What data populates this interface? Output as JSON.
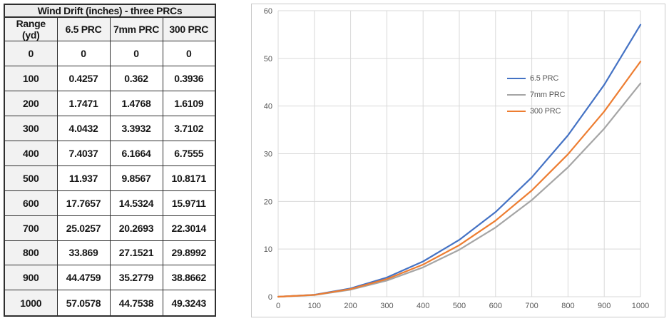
{
  "table": {
    "title": "Wind Drift (inches) - three PRCs",
    "columns": [
      "Range (yd)",
      "6.5 PRC",
      "7mm PRC",
      "300 PRC"
    ],
    "rows": [
      [
        "0",
        "0",
        "0",
        "0"
      ],
      [
        "100",
        "0.4257",
        "0.362",
        "0.3936"
      ],
      [
        "200",
        "1.7471",
        "1.4768",
        "1.6109"
      ],
      [
        "300",
        "4.0432",
        "3.3932",
        "3.7102"
      ],
      [
        "400",
        "7.4037",
        "6.1664",
        "6.7555"
      ],
      [
        "500",
        "11.937",
        "9.8567",
        "10.8171"
      ],
      [
        "600",
        "17.7657",
        "14.5324",
        "15.9711"
      ],
      [
        "700",
        "25.0257",
        "20.2693",
        "22.3014"
      ],
      [
        "800",
        "33.869",
        "27.1521",
        "29.8992"
      ],
      [
        "900",
        "44.4759",
        "35.2779",
        "38.8662"
      ],
      [
        "1000",
        "57.0578",
        "44.7538",
        "49.3243"
      ]
    ]
  },
  "chart_data": {
    "type": "line",
    "title": "",
    "xlabel": "",
    "ylabel": "",
    "x": [
      0,
      100,
      200,
      300,
      400,
      500,
      600,
      700,
      800,
      900,
      1000
    ],
    "series": [
      {
        "name": "6.5 PRC",
        "color": "#4472C4",
        "values": [
          0,
          0.4257,
          1.7471,
          4.0432,
          7.4037,
          11.937,
          17.7657,
          25.0257,
          33.869,
          44.4759,
          57.0578
        ]
      },
      {
        "name": "7mm PRC",
        "color": "#A5A5A5",
        "values": [
          0,
          0.362,
          1.4768,
          3.3932,
          6.1664,
          9.8567,
          14.5324,
          20.2693,
          27.1521,
          35.2779,
          44.7538
        ]
      },
      {
        "name": "300 PRC",
        "color": "#ED7D31",
        "values": [
          0,
          0.3936,
          1.6109,
          3.7102,
          6.7555,
          10.8171,
          15.9711,
          22.3014,
          29.8992,
          38.8662,
          49.3243
        ]
      }
    ],
    "xlim": [
      0,
      1000
    ],
    "ylim": [
      0,
      60
    ],
    "x_ticks": [
      0,
      100,
      200,
      300,
      400,
      500,
      600,
      700,
      800,
      900,
      1000
    ],
    "y_ticks": [
      0,
      10,
      20,
      30,
      40,
      50,
      60
    ],
    "grid": true,
    "legend_position": "inside-upper-right",
    "grid_color": "#d9d9d9",
    "tick_label_color": "#595959",
    "chart_border_color": "#c9c9c9"
  }
}
